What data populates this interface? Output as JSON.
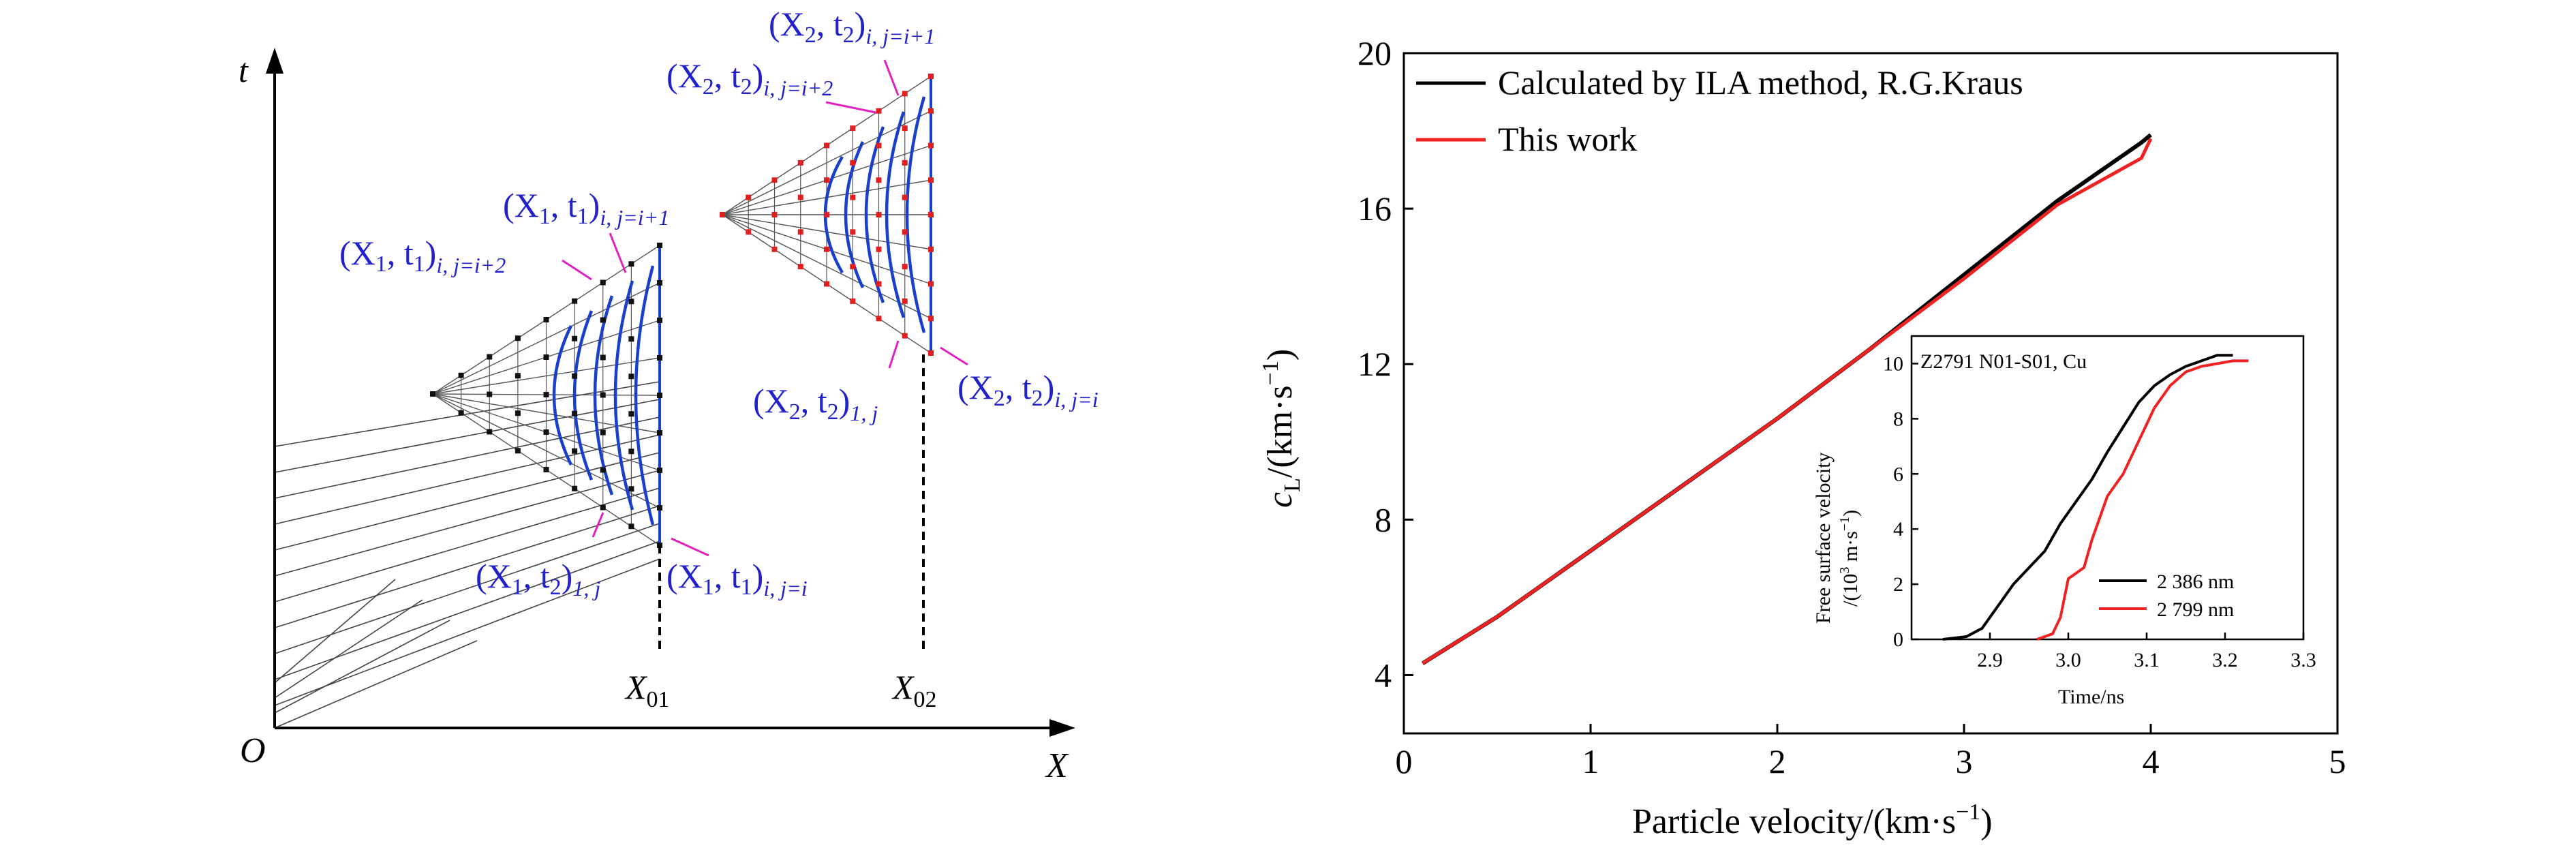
{
  "diagram": {
    "t_axis": "t",
    "x_axis": "X",
    "origin": "O",
    "x01_main": "X",
    "x01_sub": "01",
    "x02_main": "X",
    "x02_sub": "02",
    "labels": {
      "x1_ij_i1": {
        "pre": "(X",
        "s1": "1",
        "mid": ", t",
        "s2": "1",
        "post": ")",
        "sub": "i, j=i+1"
      },
      "x1_ij_i2": {
        "pre": "(X",
        "s1": "1",
        "mid": ", t",
        "s2": "1",
        "post": ")",
        "sub": "i, j=i+2"
      },
      "x1_1j": {
        "pre": "(X",
        "s1": "1",
        "mid": ", t",
        "s2": "2",
        "post": ")",
        "sub": "1, j"
      },
      "x1_ij_i": {
        "pre": "(X",
        "s1": "1",
        "mid": ", t",
        "s2": "1",
        "post": ")",
        "sub": "i, j=i"
      },
      "x2_ij_i1": {
        "pre": "(X",
        "s1": "2",
        "mid": ", t",
        "s2": "2",
        "post": ")",
        "sub": "i, j=i+1"
      },
      "x2_ij_i2": {
        "pre": "(X",
        "s1": "2",
        "mid": ", t",
        "s2": "2",
        "post": ")",
        "sub": "i, j=i+2"
      },
      "x2_1j": {
        "pre": "(X",
        "s1": "2",
        "mid": ", t",
        "s2": "2",
        "post": ")",
        "sub": "1, j"
      },
      "x2_ij_i": {
        "pre": "(X",
        "s1": "2",
        "mid": ", t",
        "s2": "2",
        "post": ")",
        "sub": "i, j=i"
      }
    },
    "colors": {
      "label": "#2222cc",
      "leader": "#e020c0",
      "curve": "#1a3fcc",
      "node1": "#111111",
      "node2": "#e02020"
    }
  },
  "chart_data": [
    {
      "type": "line",
      "xlabel": "Particle velocity/(km·s",
      "xlabel_sup": "−1",
      "xlabel_end": ")",
      "ylabel_c": "c",
      "ylabel_sub": "L",
      "ylabel_rest": "/(km·s",
      "ylabel_sup": "−1",
      "ylabel_end": ")",
      "xlim": [
        0,
        5
      ],
      "ylim": [
        2.5,
        20
      ],
      "xticks": [
        "0",
        "1",
        "2",
        "3",
        "4",
        "5"
      ],
      "yticks": [
        "4",
        "8",
        "12",
        "16",
        "20"
      ],
      "legend_position": "top-left",
      "series": [
        {
          "name": "Calculated by ILA method, R.G.Kraus",
          "color": "#000000",
          "x": [
            0.1,
            0.5,
            1.0,
            1.5,
            2.0,
            2.5,
            3.0,
            3.5,
            3.8,
            3.95,
            4.0
          ],
          "y": [
            4.3,
            5.5,
            7.2,
            8.9,
            10.6,
            12.4,
            14.3,
            16.2,
            17.2,
            17.7,
            17.9
          ]
        },
        {
          "name": "This work",
          "color": "#ee2222",
          "x": [
            0.1,
            0.5,
            1.0,
            1.5,
            2.0,
            2.5,
            3.0,
            3.5,
            3.8,
            3.95,
            4.0
          ],
          "y": [
            4.3,
            5.5,
            7.2,
            8.9,
            10.6,
            12.4,
            14.2,
            16.1,
            16.9,
            17.3,
            17.8
          ]
        }
      ]
    },
    {
      "type": "line",
      "title": "Z2791 N01-S01, Cu",
      "xlabel": "Time/ns",
      "ylabel_1": "Free surface velocity",
      "ylabel_2": "/(10",
      "ylabel_sup": "3",
      "ylabel_3": " m·s",
      "ylabel_sup2": "−1",
      "ylabel_4": ")",
      "xlim": [
        2.8,
        3.3
      ],
      "ylim": [
        0,
        11
      ],
      "xticks": [
        "2.9",
        "3.0",
        "3.1",
        "3.2",
        "3.3"
      ],
      "yticks": [
        "0",
        "2",
        "4",
        "6",
        "8",
        "10"
      ],
      "legend_position": "bottom-right",
      "series": [
        {
          "name": "2 386 nm",
          "color": "#000000",
          "x": [
            2.84,
            2.87,
            2.89,
            2.91,
            2.93,
            2.95,
            2.97,
            2.99,
            3.01,
            3.03,
            3.05,
            3.07,
            3.09,
            3.11,
            3.13,
            3.15,
            3.17,
            3.19,
            3.21
          ],
          "y": [
            0.0,
            0.1,
            0.4,
            1.2,
            2.0,
            2.6,
            3.2,
            4.2,
            5.0,
            5.8,
            6.8,
            7.7,
            8.6,
            9.2,
            9.6,
            9.9,
            10.1,
            10.3,
            10.3
          ]
        },
        {
          "name": "2 799 nm",
          "color": "#ee2222",
          "x": [
            2.96,
            2.98,
            2.99,
            3.0,
            3.02,
            3.03,
            3.05,
            3.07,
            3.09,
            3.11,
            3.13,
            3.15,
            3.17,
            3.19,
            3.21,
            3.23
          ],
          "y": [
            0.0,
            0.2,
            0.8,
            2.2,
            2.6,
            3.6,
            5.2,
            6.0,
            7.2,
            8.4,
            9.2,
            9.7,
            9.9,
            10.0,
            10.1,
            10.1
          ]
        }
      ]
    }
  ]
}
